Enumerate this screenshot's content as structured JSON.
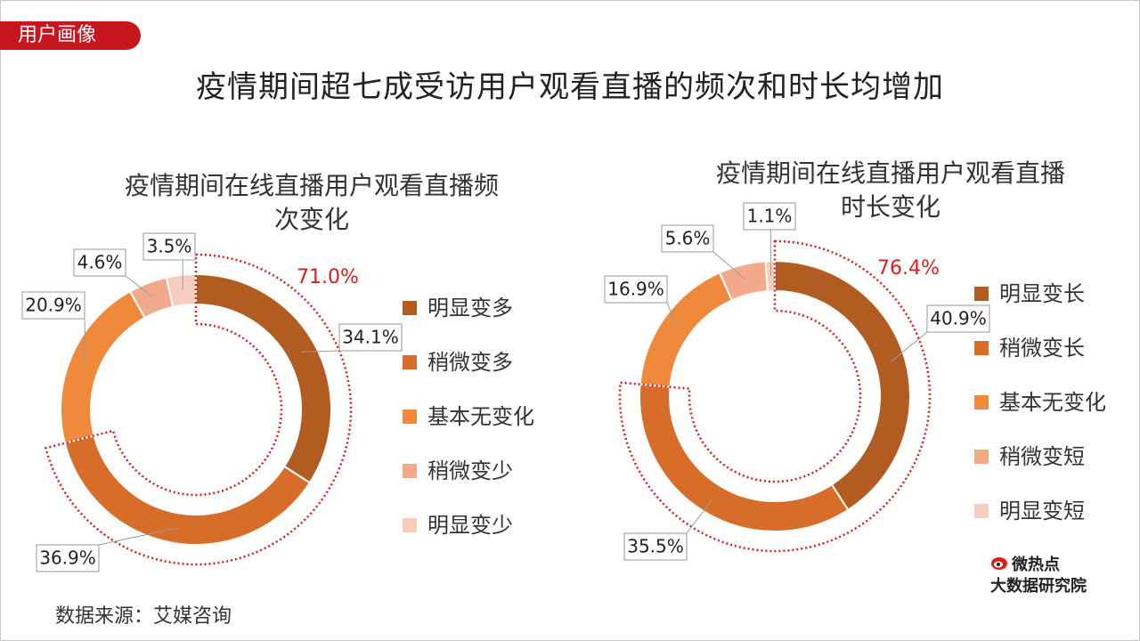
{
  "tag": "用户画像",
  "title": "疫情期间超七成受访用户观看直播的频次和时长均增加",
  "source": "数据来源：艾媒咨询",
  "logo": {
    "line1": "微热点",
    "line2": "大数据研究院",
    "icon": "weibo-eye-icon"
  },
  "colors": [
    "#b35c22",
    "#d86d2a",
    "#ef8a3c",
    "#f3aa8b",
    "#f8cdbd"
  ],
  "highlight_color": "#e31a1a",
  "chart_data": [
    {
      "type": "donut",
      "title_lines": [
        "疫情期间在线直播用户观看直播频",
        "次变化"
      ],
      "categories": [
        "明显变多",
        "稍微变多",
        "基本无变化",
        "稍微变少",
        "明显变少"
      ],
      "values": [
        34.1,
        36.9,
        20.9,
        4.6,
        3.5
      ],
      "labels": [
        "34.1%",
        "36.9%",
        "20.9%",
        "4.6%",
        "3.5%"
      ],
      "highlight": {
        "label": "71.0%",
        "value": 71.0
      },
      "legend_position": "right"
    },
    {
      "type": "donut",
      "title_lines": [
        "疫情期间在线直播用户观看直播",
        "时长变化"
      ],
      "categories": [
        "明显变长",
        "稍微变长",
        "基本无变化",
        "稍微变短",
        "明显变短"
      ],
      "values": [
        40.9,
        35.5,
        16.9,
        5.6,
        1.1
      ],
      "labels": [
        "40.9%",
        "35.5%",
        "16.9%",
        "5.6%",
        "1.1%"
      ],
      "highlight": {
        "label": "76.4%",
        "value": 76.4
      },
      "legend_position": "right"
    }
  ]
}
